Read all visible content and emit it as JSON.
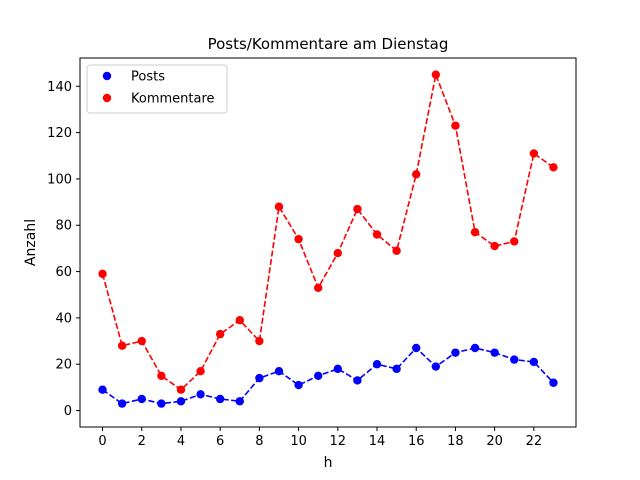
{
  "chart_data": {
    "type": "line",
    "title": "Posts/Kommentare am Dienstag",
    "xlabel": "h",
    "ylabel": "Anzahl",
    "x": [
      0,
      1,
      2,
      3,
      4,
      5,
      6,
      7,
      8,
      9,
      10,
      11,
      12,
      13,
      14,
      15,
      16,
      17,
      18,
      19,
      20,
      21,
      22,
      23
    ],
    "xlim": [
      -1.15,
      24.15
    ],
    "ylim": [
      -7.1,
      152.2
    ],
    "x_ticks": [
      0,
      2,
      4,
      6,
      8,
      10,
      12,
      14,
      16,
      18,
      20,
      22
    ],
    "y_ticks": [
      0,
      20,
      40,
      60,
      80,
      100,
      120,
      140
    ],
    "grid": false,
    "legend_position": "upper-left",
    "series": [
      {
        "name": "Posts",
        "color": "#0000ff",
        "line_style": "dashed",
        "marker": "circle",
        "values": [
          9,
          3,
          5,
          3,
          4,
          7,
          5,
          4,
          14,
          17,
          11,
          15,
          18,
          13,
          20,
          18,
          27,
          19,
          25,
          27,
          25,
          22,
          21,
          12
        ]
      },
      {
        "name": "Kommentare",
        "color": "#ff0000",
        "line_style": "dashed",
        "marker": "circle",
        "values": [
          59,
          28,
          30,
          15,
          9,
          17,
          33,
          39,
          30,
          88,
          74,
          53,
          68,
          87,
          76,
          69,
          102,
          145,
          123,
          77,
          71,
          73,
          111,
          105
        ]
      }
    ]
  }
}
